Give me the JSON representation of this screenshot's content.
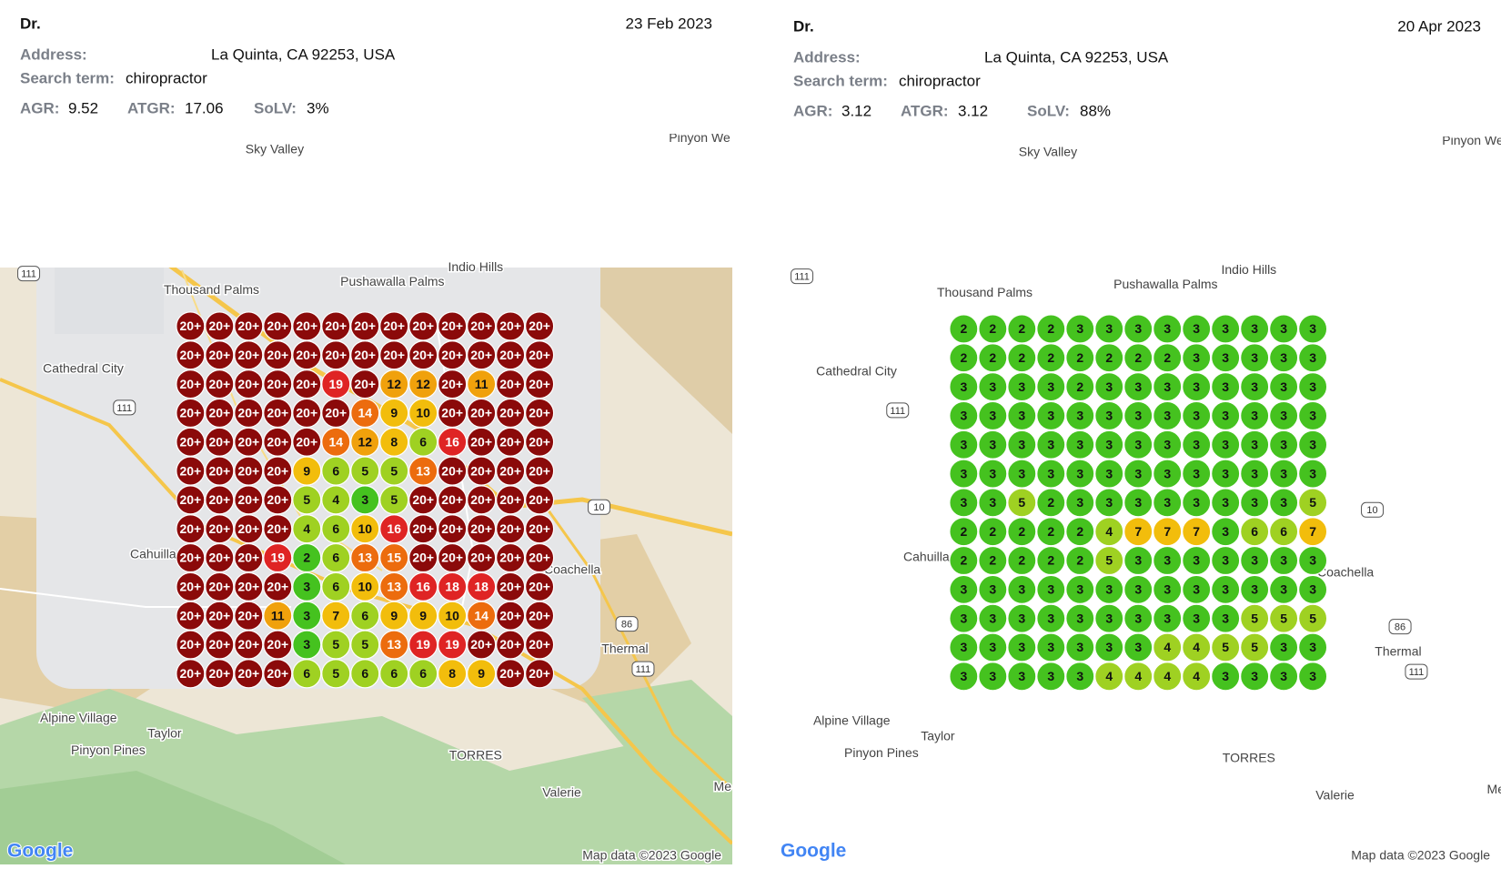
{
  "panels": [
    {
      "title": "Dr.",
      "date": "23 Feb 2023",
      "address_label": "Address:",
      "address": "La Quinta, CA 92253, USA",
      "search_label": "Search term:",
      "search_term": "chiropractor",
      "metrics": [
        {
          "label": "AGR:",
          "value": 9.52
        },
        {
          "label": "ATGR:",
          "value": 17.06
        },
        {
          "label": "SoLV:",
          "value": "3%"
        }
      ],
      "grid": [
        [
          "20+",
          "20+",
          "20+",
          "20+",
          "20+",
          "20+",
          "20+",
          "20+",
          "20+",
          "20+",
          "20+",
          "20+",
          "20+"
        ],
        [
          "20+",
          "20+",
          "20+",
          "20+",
          "20+",
          "20+",
          "20+",
          "20+",
          "20+",
          "20+",
          "20+",
          "20+",
          "20+"
        ],
        [
          "20+",
          "20+",
          "20+",
          "20+",
          "20+",
          19,
          "20+",
          12,
          12,
          "20+",
          11,
          "20+",
          "20+"
        ],
        [
          "20+",
          "20+",
          "20+",
          "20+",
          "20+",
          "20+",
          14,
          9,
          10,
          "20+",
          "20+",
          "20+",
          "20+"
        ],
        [
          "20+",
          "20+",
          "20+",
          "20+",
          "20+",
          14,
          12,
          8,
          6,
          16,
          "20+",
          "20+",
          "20+"
        ],
        [
          "20+",
          "20+",
          "20+",
          "20+",
          9,
          6,
          5,
          5,
          13,
          "20+",
          "20+",
          "20+",
          "20+"
        ],
        [
          "20+",
          "20+",
          "20+",
          "20+",
          5,
          4,
          3,
          5,
          "20+",
          "20+",
          "20+",
          "20+",
          "20+"
        ],
        [
          "20+",
          "20+",
          "20+",
          "20+",
          4,
          6,
          10,
          16,
          "20+",
          "20+",
          "20+",
          "20+",
          "20+"
        ],
        [
          "20+",
          "20+",
          "20+",
          19,
          2,
          6,
          13,
          15,
          "20+",
          "20+",
          "20+",
          "20+",
          "20+"
        ],
        [
          "20+",
          "20+",
          "20+",
          "20+",
          3,
          6,
          10,
          13,
          16,
          18,
          18,
          "20+",
          "20+"
        ],
        [
          "20+",
          "20+",
          "20+",
          11,
          3,
          7,
          6,
          9,
          9,
          10,
          14,
          "20+",
          "20+"
        ],
        [
          "20+",
          "20+",
          "20+",
          "20+",
          3,
          5,
          5,
          13,
          19,
          19,
          "20+",
          "20+",
          "20+"
        ],
        [
          "20+",
          "20+",
          "20+",
          "20+",
          6,
          5,
          6,
          6,
          6,
          8,
          9,
          "20+",
          "20+"
        ]
      ],
      "map": {
        "labels": [
          "Sky Valley",
          "Pinyon We",
          "Thousand Palms",
          "Pushawalla Palms",
          "Indio Hills",
          "Cathedral City",
          "Cahuilla",
          "Coachella",
          "Thermal",
          "Alpine Village",
          "Taylor",
          "Pinyon Pines",
          "TORRES",
          "Valerie",
          "Me"
        ],
        "shields": [
          "111",
          "111",
          "10",
          "86",
          "111"
        ],
        "attribution": "Map data ©2023 Google",
        "logo": "Google"
      }
    },
    {
      "title": "Dr.",
      "date": "20 Apr 2023",
      "address_label": "Address:",
      "address": "La Quinta, CA 92253, USA",
      "search_label": "Search term:",
      "search_term": "chiropractor",
      "metrics": [
        {
          "label": "AGR:",
          "value": 3.12
        },
        {
          "label": "ATGR:",
          "value": 3.12
        },
        {
          "label": "SoLV:",
          "value": "88%"
        }
      ],
      "grid": [
        [
          2,
          2,
          2,
          2,
          3,
          3,
          3,
          3,
          3,
          3,
          3,
          3,
          3
        ],
        [
          2,
          2,
          2,
          2,
          2,
          2,
          2,
          2,
          3,
          3,
          3,
          3,
          3
        ],
        [
          3,
          3,
          3,
          3,
          2,
          3,
          3,
          3,
          3,
          3,
          3,
          3,
          3
        ],
        [
          3,
          3,
          3,
          3,
          3,
          3,
          3,
          3,
          3,
          3,
          3,
          3,
          3
        ],
        [
          3,
          3,
          3,
          3,
          3,
          3,
          3,
          3,
          3,
          3,
          3,
          3,
          3
        ],
        [
          3,
          3,
          3,
          3,
          3,
          3,
          3,
          3,
          3,
          3,
          3,
          3,
          3
        ],
        [
          3,
          3,
          5,
          2,
          3,
          3,
          3,
          3,
          3,
          3,
          3,
          3,
          5
        ],
        [
          2,
          2,
          2,
          2,
          2,
          4,
          7,
          7,
          7,
          3,
          6,
          6,
          7
        ],
        [
          2,
          2,
          2,
          2,
          2,
          5,
          3,
          3,
          3,
          3,
          3,
          3,
          3
        ],
        [
          3,
          3,
          3,
          3,
          3,
          3,
          3,
          3,
          3,
          3,
          3,
          3,
          3
        ],
        [
          3,
          3,
          3,
          3,
          3,
          3,
          3,
          3,
          3,
          3,
          5,
          5,
          5
        ],
        [
          3,
          3,
          3,
          3,
          3,
          3,
          3,
          4,
          4,
          5,
          5,
          3,
          3
        ],
        [
          3,
          3,
          3,
          3,
          3,
          4,
          4,
          4,
          4,
          3,
          3,
          3,
          3
        ]
      ],
      "map": {
        "labels": [
          "Sky Valley",
          "Pinyon We",
          "Thousand Palms",
          "Pushawalla Palms",
          "Indio Hills",
          "Cathedral City",
          "Cahuilla",
          "Coachella",
          "Thermal",
          "Alpine Village",
          "Taylor",
          "Pinyon Pines",
          "TORRES",
          "Valerie",
          "Me"
        ],
        "shields": [
          "111",
          "111",
          "10",
          "86",
          "111"
        ],
        "attribution": "Map data ©2023 Google",
        "logo": "Google"
      }
    }
  ]
}
